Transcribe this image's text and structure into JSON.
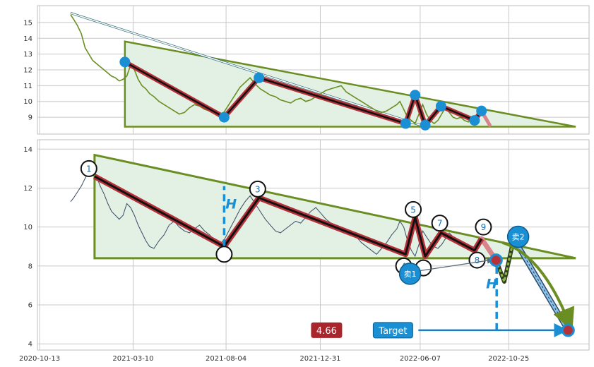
{
  "chart_data": [
    {
      "type": "line",
      "panel": "top-overview",
      "ylim": [
        8.2,
        15.8
      ],
      "yticks": [
        "9",
        "10",
        "11",
        "12",
        "13",
        "14",
        "15"
      ],
      "grid": true,
      "series": [
        {
          "color": "#6b8e23",
          "x": [
            "2020-12-01",
            "2020-12-06",
            "2020-12-12",
            "2020-12-18",
            "2020-12-24",
            "2020-12-30",
            "2021-01-05",
            "2021-01-11",
            "2021-01-17",
            "2021-01-23",
            "2021-01-29",
            "2021-02-04",
            "2021-02-10",
            "2021-02-16",
            "2021-02-22",
            "2021-02-28",
            "2021-03-06",
            "2021-03-12",
            "2021-03-18",
            "2021-03-24",
            "2021-03-30",
            "2021-04-05",
            "2021-04-12",
            "2021-04-20",
            "2021-04-28",
            "2021-05-06",
            "2021-05-14",
            "2021-05-22",
            "2021-05-30",
            "2021-06-07",
            "2021-06-15",
            "2021-06-23",
            "2021-07-01",
            "2021-07-09",
            "2021-07-17",
            "2021-07-25",
            "2021-08-02",
            "2021-08-10",
            "2021-08-18",
            "2021-08-26",
            "2021-09-03",
            "2021-09-11",
            "2021-09-19",
            "2021-09-27",
            "2021-10-05",
            "2021-10-13",
            "2021-10-21",
            "2021-10-29",
            "2021-11-06",
            "2021-11-14",
            "2021-11-22",
            "2021-11-30",
            "2021-12-08",
            "2021-12-16",
            "2021-12-24",
            "2022-01-01",
            "2022-01-09",
            "2022-01-17",
            "2022-01-25",
            "2022-02-02",
            "2022-02-10",
            "2022-02-18",
            "2022-02-26",
            "2022-03-06",
            "2022-03-14",
            "2022-03-22",
            "2022-03-30",
            "2022-04-07",
            "2022-04-15",
            "2022-04-23",
            "2022-05-01",
            "2022-05-06",
            "2022-05-12",
            "2022-05-18",
            "2022-05-24",
            "2022-05-30",
            "2022-06-05",
            "2022-06-11",
            "2022-06-17",
            "2022-06-23",
            "2022-06-29",
            "2022-07-05",
            "2022-07-11",
            "2022-07-17",
            "2022-07-23",
            "2022-07-29",
            "2022-08-04",
            "2022-08-10",
            "2022-08-16",
            "2022-08-22",
            "2022-08-28",
            "2022-09-03",
            "2022-09-09",
            "2022-09-13"
          ],
          "y": [
            15.5,
            15.2,
            14.8,
            14.3,
            13.4,
            13.0,
            12.6,
            12.4,
            12.2,
            12.0,
            11.8,
            11.6,
            11.5,
            11.3,
            11.4,
            11.6,
            12.3,
            12.0,
            11.4,
            11.0,
            10.8,
            10.5,
            10.3,
            10.0,
            9.8,
            9.6,
            9.4,
            9.2,
            9.3,
            9.6,
            9.8,
            9.7,
            9.5,
            9.4,
            9.2,
            9.0,
            9.4,
            9.9,
            10.4,
            10.9,
            11.2,
            11.5,
            11.1,
            10.8,
            10.6,
            10.4,
            10.3,
            10.1,
            10.0,
            9.9,
            10.1,
            10.2,
            10.0,
            10.1,
            10.3,
            10.5,
            10.7,
            10.8,
            10.9,
            11.0,
            10.6,
            10.4,
            10.2,
            10.0,
            9.8,
            9.6,
            9.4,
            9.3,
            9.4,
            9.6,
            9.8,
            10.0,
            9.5,
            9.0,
            8.8,
            8.6,
            9.2,
            9.8,
            9.2,
            8.8,
            8.6,
            8.8,
            9.2,
            9.6,
            9.3,
            9.0,
            8.9,
            9.0,
            8.8,
            8.7,
            8.9,
            9.1,
            9.2,
            9.4
          ]
        }
      ],
      "pattern": {
        "points": [
          {
            "x": "2021-02-25",
            "y": 12.5
          },
          {
            "x": "2021-08-01",
            "y": 9.0
          },
          {
            "x": "2021-09-25",
            "y": 11.5
          },
          {
            "x": "2022-05-15",
            "y": 8.6
          },
          {
            "x": "2022-05-30",
            "y": 10.4
          },
          {
            "x": "2022-06-15",
            "y": 8.5
          },
          {
            "x": "2022-07-10",
            "y": 9.7
          },
          {
            "x": "2022-09-01",
            "y": 8.8
          },
          {
            "x": "2022-09-12",
            "y": 9.4
          }
        ],
        "extension_to": {
          "x": "2022-09-25",
          "y": 8.5
        },
        "triangle": [
          {
            "x": "2021-02-25",
            "y": 13.8
          },
          {
            "x": "2023-02-08",
            "y": 8.4
          },
          {
            "x": "2021-02-25",
            "y": 8.4
          }
        ],
        "bounding_line": [
          {
            "x": "2020-12-01",
            "y": 15.6
          },
          {
            "x": "2022-06-15",
            "y": 8.4
          }
        ]
      }
    },
    {
      "type": "line",
      "panel": "main",
      "ylim": [
        3.9,
        14.3
      ],
      "yticks": [
        "4",
        "6",
        "8",
        "10",
        "12",
        "14"
      ],
      "xticks": [
        {
          "label": "2020-10-13",
          "x": "2020-10-13"
        },
        {
          "label": "2021-03-10",
          "x": "2021-03-10"
        },
        {
          "label": "2021-08-04",
          "x": "2021-08-04"
        },
        {
          "label": "2021-12-31",
          "x": "2021-12-31"
        },
        {
          "label": "2022-06-07",
          "x": "2022-06-07"
        },
        {
          "label": "2022-10-25",
          "x": "2022-10-25"
        }
      ],
      "grid": true,
      "series": [
        {
          "color": "#3a4a66",
          "x": [
            "2020-12-01",
            "2020-12-06",
            "2020-12-12",
            "2020-12-18",
            "2020-12-24",
            "2020-12-30",
            "2021-01-05",
            "2021-01-11",
            "2021-01-17",
            "2021-01-23",
            "2021-01-29",
            "2021-02-04",
            "2021-02-10",
            "2021-02-16",
            "2021-02-22",
            "2021-02-28",
            "2021-03-06",
            "2021-03-12",
            "2021-03-18",
            "2021-03-24",
            "2021-03-30",
            "2021-04-05",
            "2021-04-12",
            "2021-04-20",
            "2021-04-28",
            "2021-05-06",
            "2021-05-14",
            "2021-05-22",
            "2021-05-30",
            "2021-06-07",
            "2021-06-15",
            "2021-06-23",
            "2021-07-01",
            "2021-07-09",
            "2021-07-17",
            "2021-07-25",
            "2021-08-02",
            "2021-08-10",
            "2021-08-18",
            "2021-08-26",
            "2021-09-03",
            "2021-09-11",
            "2021-09-19",
            "2021-09-27",
            "2021-10-05",
            "2021-10-13",
            "2021-10-21",
            "2021-10-29",
            "2021-11-06",
            "2021-11-14",
            "2021-11-22",
            "2021-11-30",
            "2021-12-08",
            "2021-12-16",
            "2021-12-24",
            "2022-01-01",
            "2022-01-09",
            "2022-01-17",
            "2022-01-25",
            "2022-02-02",
            "2022-02-10",
            "2022-02-18",
            "2022-02-26",
            "2022-03-06",
            "2022-03-14",
            "2022-03-22",
            "2022-03-30",
            "2022-04-07",
            "2022-04-15",
            "2022-04-23",
            "2022-05-01",
            "2022-05-06",
            "2022-05-12",
            "2022-05-18",
            "2022-05-24",
            "2022-05-30",
            "2022-06-05",
            "2022-06-11",
            "2022-06-17",
            "2022-06-23",
            "2022-06-29",
            "2022-07-05",
            "2022-07-11",
            "2022-07-17",
            "2022-07-23",
            "2022-07-29",
            "2022-08-04",
            "2022-08-10",
            "2022-08-16",
            "2022-08-22",
            "2022-08-28",
            "2022-09-03",
            "2022-09-09",
            "2022-09-13"
          ],
          "y": [
            11.3,
            11.5,
            11.8,
            12.1,
            12.5,
            12.8,
            13.1,
            12.6,
            12.1,
            11.7,
            11.2,
            10.8,
            10.6,
            10.4,
            10.6,
            11.2,
            11.0,
            10.6,
            10.1,
            9.7,
            9.3,
            9.0,
            8.9,
            9.3,
            9.6,
            10.1,
            10.3,
            10.0,
            9.8,
            9.7,
            9.9,
            10.1,
            9.8,
            9.6,
            9.3,
            9.1,
            9.4,
            9.9,
            10.4,
            10.9,
            11.3,
            11.6,
            11.2,
            10.8,
            10.4,
            10.1,
            9.8,
            9.7,
            9.9,
            10.1,
            10.3,
            10.2,
            10.5,
            10.8,
            11.0,
            10.7,
            10.4,
            10.2,
            10.0,
            9.9,
            9.7,
            9.6,
            9.5,
            9.2,
            9.0,
            8.8,
            8.6,
            8.9,
            9.2,
            9.6,
            9.9,
            10.3,
            10.0,
            9.3,
            8.8,
            8.5,
            9.1,
            9.8,
            9.5,
            9.2,
            9.0,
            8.9,
            9.1,
            9.4,
            9.7,
            9.5,
            9.3,
            9.1,
            9.0,
            8.9,
            8.8,
            9.0,
            9.2,
            9.3
          ]
        }
      ],
      "pattern": {
        "points": [
          {
            "label": "1",
            "x": "2021-01-08",
            "y": 12.6
          },
          {
            "label": "",
            "x": "2021-08-01",
            "y": 9.0
          },
          {
            "label": "3",
            "x": "2021-09-25",
            "y": 11.5
          },
          {
            "label": "4",
            "x": "2022-05-15",
            "y": 8.6
          },
          {
            "label": "5",
            "x": "2022-05-30",
            "y": 10.5
          },
          {
            "label": "",
            "x": "2022-06-15",
            "y": 8.5
          },
          {
            "label": "7",
            "x": "2022-07-10",
            "y": 9.7
          },
          {
            "label": "8",
            "x": "2022-09-01",
            "y": 8.8
          },
          {
            "label": "9",
            "x": "2022-09-12",
            "y": 9.4
          }
        ],
        "point_circles": [
          {
            "label": "1",
            "x": "2020-12-30",
            "y": 13.0
          },
          {
            "label": "",
            "x": "2021-08-01",
            "y": 8.6
          },
          {
            "label": "3",
            "x": "2021-09-23",
            "y": 11.95
          },
          {
            "label": "4",
            "x": "2022-05-12",
            "y": 8.0
          },
          {
            "label": "5",
            "x": "2022-05-27",
            "y": 10.9
          },
          {
            "label": "",
            "x": "2022-06-12",
            "y": 7.9
          },
          {
            "label": "7",
            "x": "2022-07-08",
            "y": 10.2
          },
          {
            "label": "8",
            "x": "2022-09-05",
            "y": 8.3
          },
          {
            "label": "9",
            "x": "2022-09-15",
            "y": 10.0
          }
        ],
        "triangle": [
          {
            "x": "2021-01-08",
            "y": 13.7
          },
          {
            "x": "2023-02-08",
            "y": 8.4
          },
          {
            "x": "2021-01-08",
            "y": 8.4
          }
        ],
        "extension_to": {
          "x": "2022-10-05",
          "y": 8.3
        },
        "height_markers": [
          {
            "label": "H",
            "x": "2021-08-01",
            "y_from": 9.0,
            "y_to": 12.1,
            "label_at": {
              "x": "2021-08-12",
              "y": 11.2
            }
          },
          {
            "label": "H",
            "x": "2022-10-06",
            "y_from": 4.7,
            "y_to": 8.3,
            "label_at": {
              "x": "2022-09-28",
              "y": 7.1
            }
          }
        ],
        "projection_zigzag": [
          {
            "x": "2022-10-05",
            "y": 8.3
          },
          {
            "x": "2022-10-18",
            "y": 7.2
          },
          {
            "x": "2022-11-02",
            "y": 9.4
          }
        ],
        "projection_to_target": [
          {
            "x": "2022-11-02",
            "y": 9.4
          },
          {
            "x": "2023-01-27",
            "y": 4.7
          }
        ],
        "breakout_arrow": [
          {
            "x": "2022-10-15",
            "y": 9.2
          },
          {
            "x": "2022-12-15",
            "y": 8.6
          },
          {
            "x": "2023-01-27",
            "y": 5.2
          }
        ],
        "sell_signals": [
          {
            "label": "卖1",
            "x": "2022-05-22",
            "y": 7.6,
            "arrow_to": {
              "x": "2022-10-05",
              "y": 8.3
            }
          },
          {
            "label": "卖2",
            "x": "2022-11-09",
            "y": 9.5
          }
        ],
        "target": {
          "label": "Target",
          "value_label": "4.66",
          "value": 4.66,
          "at": {
            "x": "2023-01-27",
            "y": 4.7
          },
          "label_at": {
            "x": "2022-04-25",
            "y": 4.7
          },
          "value_at": {
            "x": "2022-01-10",
            "y": 4.7
          }
        }
      }
    }
  ],
  "colors": {
    "triangle_fill": "#e3f1e4",
    "triangle_edge": "#6b8e23",
    "pattern_band": "#b5323a",
    "pattern_core": "#111111",
    "pivot_dot": "#1a8fd4",
    "target_badge": "#1a8fd4",
    "value_badge": "#a8262c",
    "height_marker": "#1a8fd4",
    "projection": "#6b8e23",
    "projection_target": "#5a8fc0",
    "grid": "#c8c8c8",
    "axis_frame": "#bdbdbd"
  }
}
